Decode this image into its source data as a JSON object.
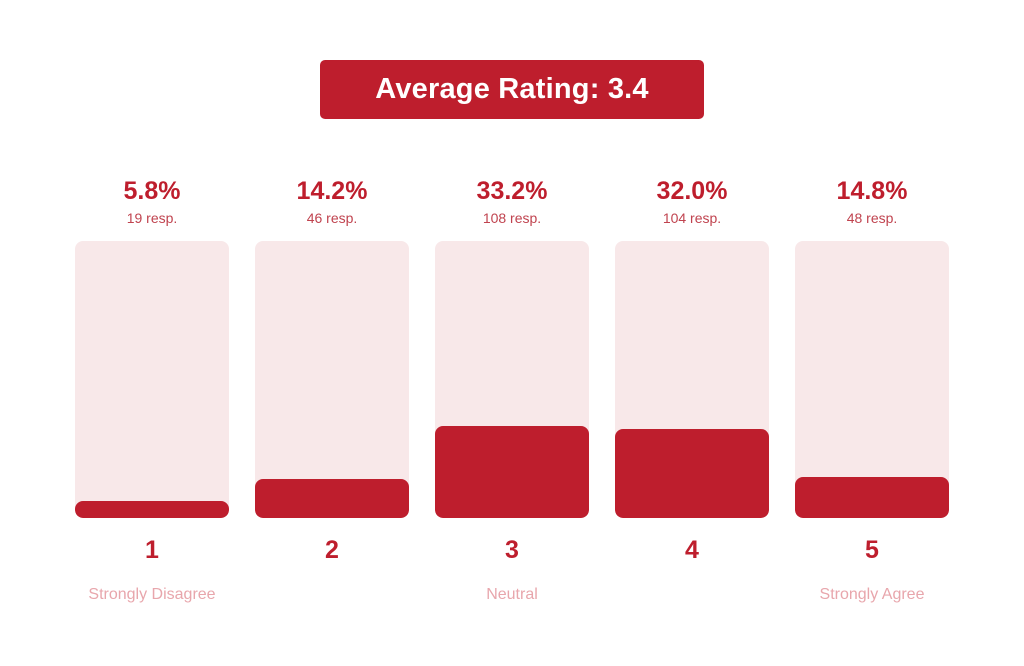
{
  "title": {
    "label": "Average Rating:",
    "value": "3.4"
  },
  "colors": {
    "accent": "#be1e2d",
    "track": "#f8e8e9",
    "label": "#e8a6ac"
  },
  "chart_data": {
    "type": "bar",
    "title": "Average Rating: 3.4",
    "categories": [
      "1",
      "2",
      "3",
      "4",
      "5"
    ],
    "category_labels": [
      "Strongly Disagree",
      "",
      "Neutral",
      "",
      "Strongly Agree"
    ],
    "percent_labels": [
      "5.8%",
      "14.2%",
      "33.2%",
      "32.0%",
      "14.8%"
    ],
    "response_labels": [
      "19 resp.",
      "46 resp.",
      "108 resp.",
      "104 resp.",
      "48 resp."
    ],
    "values": [
      5.8,
      14.2,
      33.2,
      32.0,
      14.8
    ],
    "responses": [
      19,
      46,
      108,
      104,
      48
    ],
    "ylim": [
      0,
      100
    ],
    "grid": false,
    "legend": "none"
  }
}
